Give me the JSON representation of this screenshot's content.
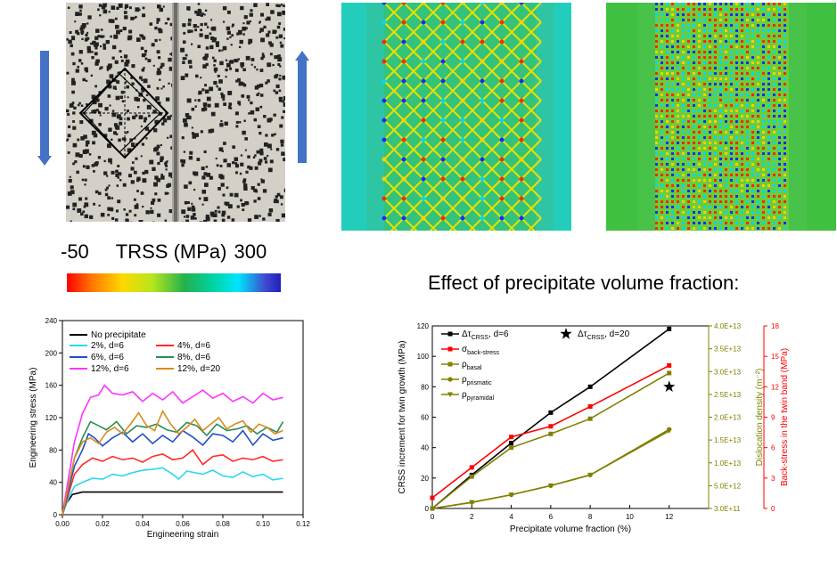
{
  "colorbar": {
    "min_label": "-50",
    "title": "TRSS (MPa)",
    "max_label": "300"
  },
  "colors": {
    "arrow": "#4472c4"
  },
  "icons": [
    "arrow-down-icon",
    "arrow-up-icon"
  ],
  "effect_title": "Effect of precipitate volume fraction:",
  "chart_data": [
    {
      "type": "line",
      "xlabel": "Engineering strain",
      "ylabel": "Engineering stress (MPa)",
      "xlim": [
        0,
        0.12
      ],
      "ylim": [
        0,
        240
      ],
      "xticks": [
        "0.00",
        "0.02",
        "0.04",
        "0.06",
        "0.08",
        "0.10",
        "0.12"
      ],
      "yticks": [
        "0",
        "40",
        "80",
        "120",
        "160",
        "200",
        "240"
      ],
      "legend": "top-left",
      "series": [
        {
          "name": "No precipitate",
          "color": "#000000",
          "x": [
            0,
            0.002,
            0.005,
            0.01,
            0.11
          ],
          "y": [
            0,
            14,
            25,
            28,
            28
          ]
        },
        {
          "name": "2%,  d=6",
          "color": "#2ad7ee",
          "x": [
            0,
            0.003,
            0.006,
            0.01,
            0.015,
            0.02,
            0.025,
            0.03,
            0.035,
            0.04,
            0.045,
            0.05,
            0.055,
            0.058,
            0.062,
            0.066,
            0.07,
            0.075,
            0.08,
            0.085,
            0.09,
            0.095,
            0.1,
            0.105,
            0.11
          ],
          "y": [
            0,
            20,
            35,
            40,
            45,
            44,
            50,
            48,
            52,
            55,
            56,
            58,
            50,
            44,
            54,
            52,
            50,
            55,
            48,
            46,
            53,
            47,
            50,
            43,
            45
          ]
        },
        {
          "name": "4%,   d=6",
          "color": "#ff2a2a",
          "x": [
            0,
            0.003,
            0.006,
            0.01,
            0.015,
            0.02,
            0.025,
            0.03,
            0.035,
            0.04,
            0.045,
            0.05,
            0.055,
            0.06,
            0.065,
            0.07,
            0.075,
            0.08,
            0.085,
            0.09,
            0.095,
            0.1,
            0.105,
            0.11
          ],
          "y": [
            0,
            25,
            50,
            62,
            70,
            66,
            72,
            68,
            70,
            65,
            72,
            75,
            68,
            70,
            80,
            62,
            72,
            74,
            66,
            70,
            68,
            72,
            66,
            68
          ]
        },
        {
          "name": "6%,  d=6",
          "color": "#2050c8",
          "x": [
            0,
            0.003,
            0.006,
            0.01,
            0.013,
            0.016,
            0.02,
            0.025,
            0.03,
            0.035,
            0.04,
            0.045,
            0.05,
            0.055,
            0.06,
            0.065,
            0.07,
            0.075,
            0.08,
            0.085,
            0.09,
            0.095,
            0.1,
            0.105,
            0.11
          ],
          "y": [
            0,
            30,
            60,
            80,
            100,
            95,
            85,
            95,
            102,
            90,
            100,
            88,
            98,
            90,
            104,
            96,
            86,
            100,
            98,
            90,
            104,
            86,
            100,
            92,
            95
          ]
        },
        {
          "name": "8%,  d=6",
          "color": "#2e8b57",
          "x": [
            0,
            0.003,
            0.006,
            0.01,
            0.014,
            0.018,
            0.022,
            0.027,
            0.032,
            0.037,
            0.042,
            0.047,
            0.052,
            0.057,
            0.062,
            0.067,
            0.072,
            0.077,
            0.082,
            0.087,
            0.092,
            0.097,
            0.102,
            0.107,
            0.11
          ],
          "y": [
            0,
            35,
            70,
            95,
            115,
            110,
            105,
            115,
            100,
            110,
            108,
            112,
            105,
            102,
            114,
            110,
            98,
            112,
            104,
            106,
            110,
            100,
            108,
            102,
            115
          ]
        },
        {
          "name": "12%, d=6",
          "color": "#ff33ff",
          "x": [
            0,
            0.003,
            0.006,
            0.01,
            0.014,
            0.018,
            0.021,
            0.025,
            0.03,
            0.035,
            0.04,
            0.045,
            0.05,
            0.055,
            0.06,
            0.065,
            0.07,
            0.075,
            0.08,
            0.085,
            0.09,
            0.095,
            0.1,
            0.105,
            0.11
          ],
          "y": [
            0,
            45,
            90,
            125,
            145,
            148,
            160,
            150,
            148,
            152,
            140,
            150,
            142,
            152,
            138,
            146,
            154,
            144,
            150,
            140,
            146,
            138,
            150,
            142,
            145
          ]
        },
        {
          "name": "12%, d=20",
          "color": "#d98c1a",
          "x": [
            0,
            0.003,
            0.006,
            0.01,
            0.014,
            0.018,
            0.022,
            0.026,
            0.03,
            0.034,
            0.038,
            0.042,
            0.046,
            0.05,
            0.054,
            0.058,
            0.062,
            0.066,
            0.07,
            0.074,
            0.078,
            0.082,
            0.086,
            0.09,
            0.094,
            0.098,
            0.102,
            0.106,
            0.11
          ],
          "y": [
            0,
            35,
            70,
            90,
            95,
            88,
            102,
            108,
            100,
            112,
            126,
            110,
            104,
            128,
            112,
            100,
            108,
            118,
            104,
            112,
            120,
            106,
            112,
            116,
            102,
            112,
            108,
            100,
            104
          ]
        }
      ]
    },
    {
      "type": "line",
      "xlabel": "Precipitate volume fraction (%)",
      "ylabel": "CRSS increment for twin growth (MPa)",
      "xlim": [
        0,
        14
      ],
      "ylim": [
        0,
        120
      ],
      "xticks": [
        "0",
        "2",
        "4",
        "6",
        "8",
        "10",
        "12"
      ],
      "yticks": [
        "0",
        "20",
        "40",
        "60",
        "80",
        "100",
        "120"
      ],
      "y2": {
        "label": "Dislocation density (m⁻²)",
        "ticks": [
          "3.0E+11",
          "5.0E+12",
          "1.0E+13",
          "1.5E+13",
          "2.0E+13",
          "2.5E+13",
          "3.0E+13",
          "3.5E+13",
          "4.0E+13"
        ],
        "color": "#808000"
      },
      "y3": {
        "label": "Back-stress in the twin band (MPa)",
        "ticks": [
          "0",
          "3",
          "6",
          "9",
          "12",
          "15",
          "18"
        ],
        "color": "#ff0000"
      },
      "legend": "top-left",
      "series": [
        {
          "name": "Δτ",
          "sub": "CRSS",
          "suffix": ", d=6",
          "marker": "square",
          "color": "#000000",
          "x": [
            0,
            2,
            4,
            6,
            8,
            12
          ],
          "y": [
            0,
            22,
            43,
            63,
            80,
            118
          ]
        },
        {
          "name": "σ",
          "sub": "back-stress",
          "suffix": "",
          "marker": "square",
          "color": "#ff0000",
          "x": [
            0,
            2,
            4,
            6,
            8,
            12
          ],
          "y": [
            7,
            27,
            47,
            54,
            67,
            94
          ]
        },
        {
          "name": "ρ",
          "sub": "basal",
          "suffix": "",
          "marker": "square",
          "color": "#808000",
          "x": [
            0,
            2,
            4,
            6,
            8,
            12
          ],
          "y": [
            0,
            21,
            40,
            49,
            59,
            89
          ]
        },
        {
          "name": "ρ",
          "sub": "prismatic",
          "suffix": "",
          "marker": "circle",
          "color": "#808000",
          "x": [
            0,
            2,
            4,
            6,
            8,
            12
          ],
          "y": [
            0,
            4,
            9,
            15,
            22,
            52
          ]
        },
        {
          "name": "ρ",
          "sub": "pyramidal",
          "suffix": "",
          "marker": "triangle",
          "color": "#808000",
          "x": [
            0,
            2,
            4,
            6,
            8,
            12
          ],
          "y": [
            0,
            4,
            9,
            15,
            22,
            51
          ]
        }
      ],
      "extra_point": {
        "name": "Δτ",
        "sub": "CRSS",
        "suffix": ", d=20",
        "marker": "star",
        "x": 12,
        "y": 80
      }
    }
  ]
}
